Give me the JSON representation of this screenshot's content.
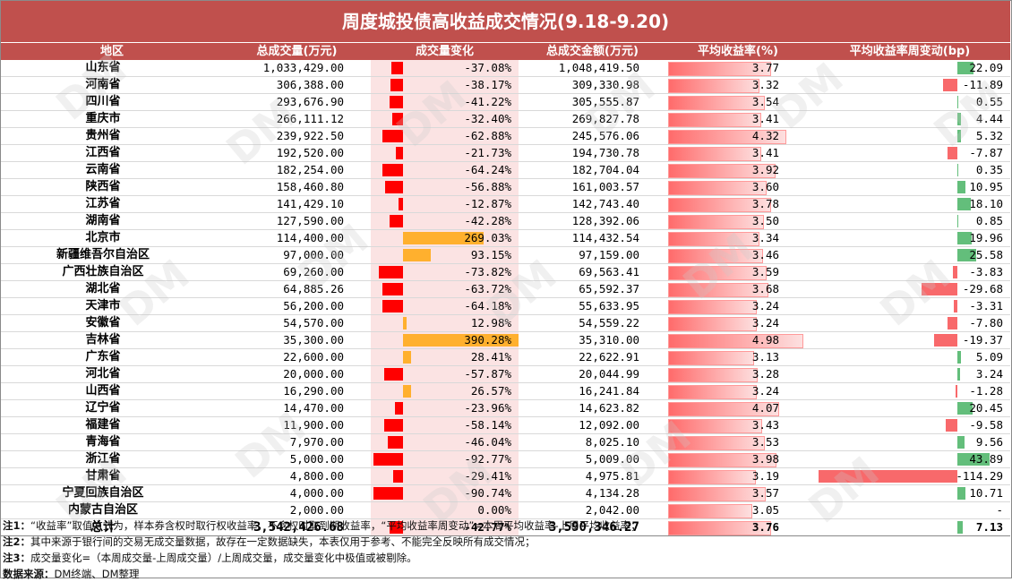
{
  "title": "周度城投债高收益成交情况(9.18-9.20)",
  "headers": [
    "地区",
    "总成交量(万元)",
    "成交量变化",
    "总成交金额(万元)",
    "平均收益率(%)",
    "平均收益率周变动(bp)"
  ],
  "colors": {
    "header_bg": "#c0504d",
    "neg_bar": "#ff0000",
    "pos_bar": "#ffb02e",
    "yield_bar": "#ff6b6b",
    "chg_up": "#63be7b",
    "chg_down": "#f8696b"
  },
  "rows": [
    {
      "region": "山东省",
      "volume": "1,033,429.00",
      "vol_change": "-37.08%",
      "vol_change_v": -37.08,
      "amount": "1,048,419.50",
      "yield": "3.77",
      "yield_v": 3.77,
      "bp": "22.09",
      "bp_v": 22.09
    },
    {
      "region": "河南省",
      "volume": "306,388.00",
      "vol_change": "-38.17%",
      "vol_change_v": -38.17,
      "amount": "309,330.98",
      "yield": "3.32",
      "yield_v": 3.32,
      "bp": "-11.89",
      "bp_v": -11.89
    },
    {
      "region": "四川省",
      "volume": "293,676.90",
      "vol_change": "-41.22%",
      "vol_change_v": -41.22,
      "amount": "305,555.87",
      "yield": "3.54",
      "yield_v": 3.54,
      "bp": "0.55",
      "bp_v": 0.55
    },
    {
      "region": "重庆市",
      "volume": "266,111.12",
      "vol_change": "-32.40%",
      "vol_change_v": -32.4,
      "amount": "269,827.78",
      "yield": "3.41",
      "yield_v": 3.41,
      "bp": "4.44",
      "bp_v": 4.44
    },
    {
      "region": "贵州省",
      "volume": "239,922.50",
      "vol_change": "-62.88%",
      "vol_change_v": -62.88,
      "amount": "245,576.06",
      "yield": "4.32",
      "yield_v": 4.32,
      "bp": "5.32",
      "bp_v": 5.32
    },
    {
      "region": "江西省",
      "volume": "192,520.00",
      "vol_change": "-21.73%",
      "vol_change_v": -21.73,
      "amount": "194,730.78",
      "yield": "3.41",
      "yield_v": 3.41,
      "bp": "-7.87",
      "bp_v": -7.87
    },
    {
      "region": "云南省",
      "volume": "182,254.00",
      "vol_change": "-64.24%",
      "vol_change_v": -64.24,
      "amount": "182,704.04",
      "yield": "3.92",
      "yield_v": 3.92,
      "bp": "0.35",
      "bp_v": 0.35
    },
    {
      "region": "陕西省",
      "volume": "158,460.80",
      "vol_change": "-56.88%",
      "vol_change_v": -56.88,
      "amount": "161,003.57",
      "yield": "3.60",
      "yield_v": 3.6,
      "bp": "10.95",
      "bp_v": 10.95
    },
    {
      "region": "江苏省",
      "volume": "141,429.10",
      "vol_change": "-12.87%",
      "vol_change_v": -12.87,
      "amount": "142,743.40",
      "yield": "3.78",
      "yield_v": 3.78,
      "bp": "18.10",
      "bp_v": 18.1
    },
    {
      "region": "湖南省",
      "volume": "127,590.00",
      "vol_change": "-42.28%",
      "vol_change_v": -42.28,
      "amount": "128,392.06",
      "yield": "3.50",
      "yield_v": 3.5,
      "bp": "0.85",
      "bp_v": 0.85
    },
    {
      "region": "北京市",
      "volume": "114,400.00",
      "vol_change": "269.03%",
      "vol_change_v": 269.03,
      "amount": "114,432.54",
      "yield": "3.34",
      "yield_v": 3.34,
      "bp": "19.96",
      "bp_v": 19.96
    },
    {
      "region": "新疆维吾尔自治区",
      "volume": "97,000.00",
      "vol_change": "93.15%",
      "vol_change_v": 93.15,
      "amount": "97,159.00",
      "yield": "3.46",
      "yield_v": 3.46,
      "bp": "25.58",
      "bp_v": 25.58
    },
    {
      "region": "广西壮族自治区",
      "volume": "69,260.00",
      "vol_change": "-73.82%",
      "vol_change_v": -73.82,
      "amount": "69,563.41",
      "yield": "3.59",
      "yield_v": 3.59,
      "bp": "-3.83",
      "bp_v": -3.83
    },
    {
      "region": "湖北省",
      "volume": "64,885.26",
      "vol_change": "-63.72%",
      "vol_change_v": -63.72,
      "amount": "65,592.37",
      "yield": "3.68",
      "yield_v": 3.68,
      "bp": "-29.68",
      "bp_v": -29.68
    },
    {
      "region": "天津市",
      "volume": "56,200.00",
      "vol_change": "-64.18%",
      "vol_change_v": -64.18,
      "amount": "55,633.95",
      "yield": "3.24",
      "yield_v": 3.24,
      "bp": "-3.31",
      "bp_v": -3.31
    },
    {
      "region": "安徽省",
      "volume": "54,570.00",
      "vol_change": "12.98%",
      "vol_change_v": 12.98,
      "amount": "54,559.22",
      "yield": "3.24",
      "yield_v": 3.24,
      "bp": "-7.80",
      "bp_v": -7.8
    },
    {
      "region": "吉林省",
      "volume": "35,300.00",
      "vol_change": "390.28%",
      "vol_change_v": 390.28,
      "amount": "35,310.00",
      "yield": "4.98",
      "yield_v": 4.98,
      "bp": "-19.37",
      "bp_v": -19.37
    },
    {
      "region": "广东省",
      "volume": "22,600.00",
      "vol_change": "28.41%",
      "vol_change_v": 28.41,
      "amount": "22,622.91",
      "yield": "3.13",
      "yield_v": 3.13,
      "bp": "5.09",
      "bp_v": 5.09
    },
    {
      "region": "河北省",
      "volume": "20,000.00",
      "vol_change": "-57.87%",
      "vol_change_v": -57.87,
      "amount": "20,044.99",
      "yield": "3.28",
      "yield_v": 3.28,
      "bp": "3.24",
      "bp_v": 3.24
    },
    {
      "region": "山西省",
      "volume": "16,290.00",
      "vol_change": "26.57%",
      "vol_change_v": 26.57,
      "amount": "16,241.84",
      "yield": "3.24",
      "yield_v": 3.24,
      "bp": "-1.28",
      "bp_v": -1.28
    },
    {
      "region": "辽宁省",
      "volume": "14,470.00",
      "vol_change": "-23.96%",
      "vol_change_v": -23.96,
      "amount": "14,623.82",
      "yield": "4.07",
      "yield_v": 4.07,
      "bp": "20.45",
      "bp_v": 20.45
    },
    {
      "region": "福建省",
      "volume": "11,900.00",
      "vol_change": "-58.14%",
      "vol_change_v": -58.14,
      "amount": "12,092.00",
      "yield": "3.43",
      "yield_v": 3.43,
      "bp": "-9.58",
      "bp_v": -9.58
    },
    {
      "region": "青海省",
      "volume": "7,970.00",
      "vol_change": "-46.04%",
      "vol_change_v": -46.04,
      "amount": "8,025.10",
      "yield": "3.53",
      "yield_v": 3.53,
      "bp": "9.56",
      "bp_v": 9.56
    },
    {
      "region": "浙江省",
      "volume": "5,000.00",
      "vol_change": "-92.77%",
      "vol_change_v": -92.77,
      "amount": "5,009.00",
      "yield": "3.98",
      "yield_v": 3.98,
      "bp": "43.89",
      "bp_v": 43.89
    },
    {
      "region": "甘肃省",
      "volume": "4,800.00",
      "vol_change": "-29.41%",
      "vol_change_v": -29.41,
      "amount": "4,975.81",
      "yield": "3.19",
      "yield_v": 3.19,
      "bp": "-114.29",
      "bp_v": -114.29
    },
    {
      "region": "宁夏回族自治区",
      "volume": "4,000.00",
      "vol_change": "-90.74%",
      "vol_change_v": -90.74,
      "amount": "4,134.28",
      "yield": "3.57",
      "yield_v": 3.57,
      "bp": "10.71",
      "bp_v": 10.71
    },
    {
      "region": "内蒙古自治区",
      "volume": "2,000.00",
      "vol_change": "0.00%",
      "vol_change_v": 0,
      "amount": "2,042.00",
      "yield": "3.05",
      "yield_v": 3.05,
      "bp": "-",
      "bp_v": 0
    }
  ],
  "total": {
    "region": "总计",
    "volume": "3,542,426.68",
    "vol_change": "-42.77%",
    "vol_change_v": -42.77,
    "amount": "3,590,346.27",
    "yield": "3.76",
    "yield_v": 3.76,
    "bp": "7.13",
    "bp_v": 7.13
  },
  "notes": [
    {
      "label": "注1：",
      "text": "“收益率”取值方式为，样本券含权时取行权收益率，不含权时取到期收益率，“平均收益率周变动”=本周平均收益率-上周平均收益率；"
    },
    {
      "label": "注2：",
      "text": "其中来源于银行间的交易无成交量数据，故存在一定数据缺失，本表仅用于参考、不能完全反映所有成交情况；"
    },
    {
      "label": "注3：",
      "text": "成交量变化=（本周成交量-上周成交量）/上周成交量，成交量变化中极值或被剔除。"
    },
    {
      "label": "数据来源：",
      "text": "DM终端、DM整理"
    }
  ],
  "watermark": "DM"
}
